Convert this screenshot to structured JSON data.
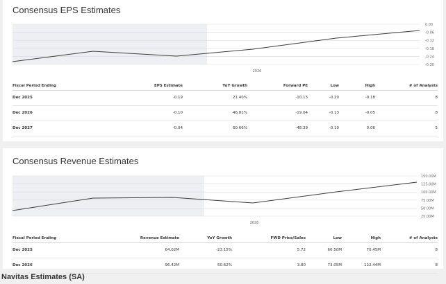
{
  "eps": {
    "title": "Consensus EPS Estimates",
    "chart": {
      "y_ticks": [
        "0.00",
        "-0.06",
        "-0.12",
        "-0.18",
        "-0.24",
        "-0.30"
      ],
      "x_tick": "2026"
    },
    "columns": [
      "Fiscal Period Ending",
      "EPS Estimate",
      "YoY Growth",
      "Forward PE",
      "Low",
      "High",
      "# of Analysts"
    ],
    "rows": [
      [
        "Dec 2025",
        "-0.19",
        "21.40%",
        "-10.13",
        "-0.20",
        "-0.18",
        "8"
      ],
      [
        "Dec 2026",
        "-0.10",
        "46.81%",
        "-19.04",
        "-0.13",
        "-0.05",
        "8"
      ],
      [
        "Dec 2027",
        "-0.04",
        "60.66%",
        "-48.39",
        "-0.10",
        "0.06",
        "5"
      ]
    ]
  },
  "revenue": {
    "title": "Consensus Revenue Estimates",
    "chart": {
      "y_ticks": [
        "150.00M",
        "125.00M",
        "100.00M",
        "75.00M",
        "50.00M",
        "25.00M"
      ],
      "x_tick": "2026"
    },
    "columns": [
      "Fiscal Period Ending",
      "Revenue Estimate",
      "YoY Growth",
      "FWD Price/Sales",
      "Low",
      "High",
      "# of Analysts"
    ],
    "rows": [
      [
        "Dec 2025",
        "64.02M",
        "-23.15%",
        "5.72",
        "60.50M",
        "70.45M",
        "8"
      ],
      [
        "Dec 2026",
        "96.42M",
        "50.62%",
        "3.80",
        "73.05M",
        "122.44M",
        "8"
      ]
    ]
  },
  "caption": "Navitas Estimates (SA)",
  "colors": {
    "line": "#3a3a3a",
    "history_shade": "#eeeff2",
    "grid": "#d9d9d9"
  }
}
